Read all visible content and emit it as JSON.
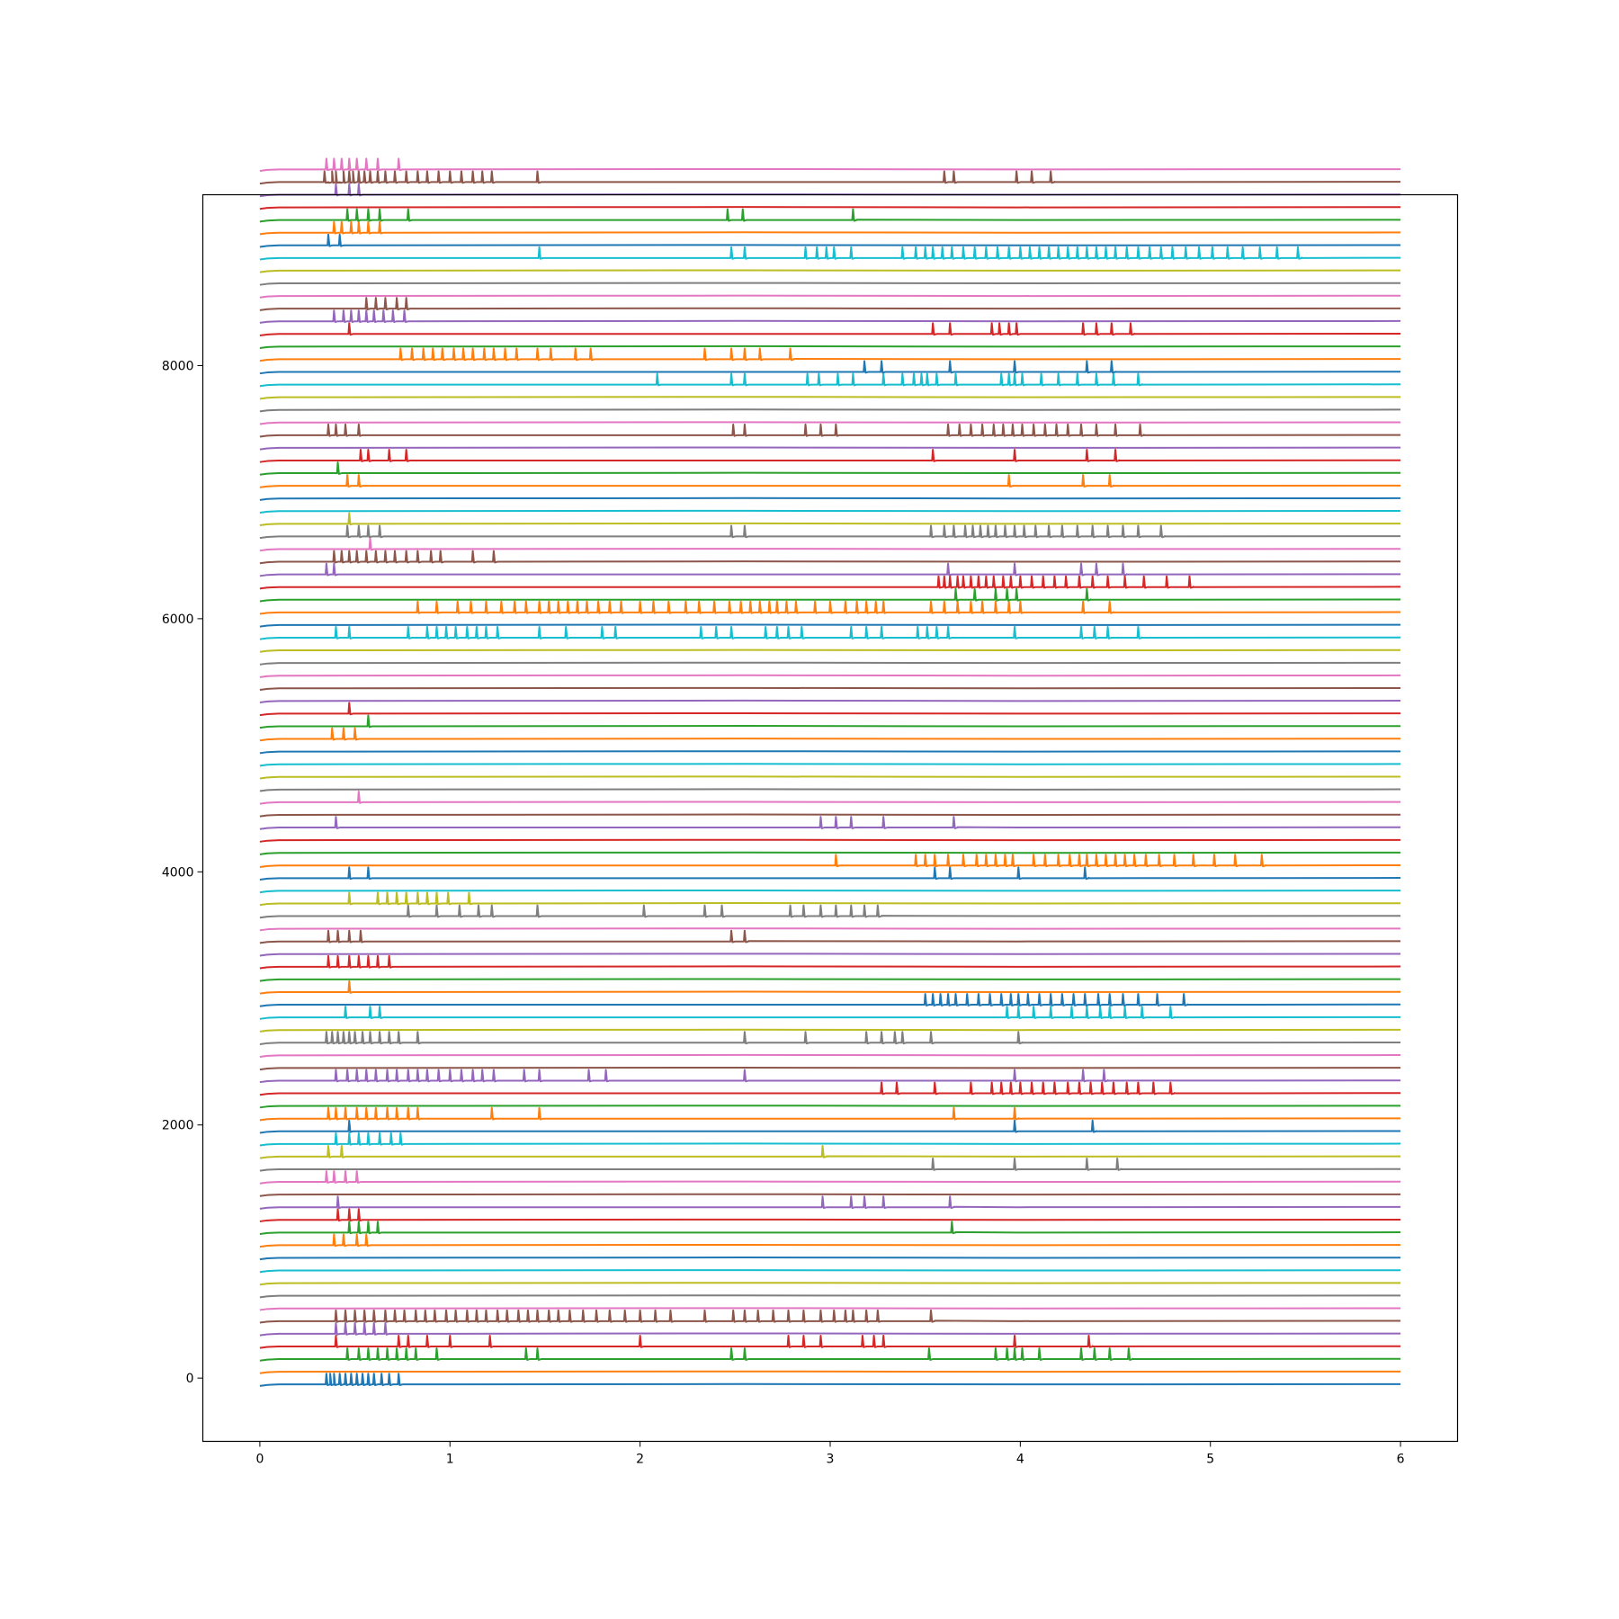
{
  "chart_data": {
    "type": "line",
    "title": "",
    "xlabel": "",
    "ylabel": "",
    "xlim": [
      -0.3,
      6.3
    ],
    "ylim": [
      -500,
      9350
    ],
    "x_ticks": [
      0,
      1,
      2,
      3,
      4,
      5,
      6
    ],
    "x_tick_labels": [
      "0",
      "1",
      "2",
      "3",
      "4",
      "5",
      "6"
    ],
    "y_ticks": [
      0,
      2000,
      4000,
      6000,
      8000
    ],
    "y_tick_labels": [
      "0",
      "2000",
      "4000",
      "6000",
      "8000"
    ],
    "grid": false,
    "legend": "none",
    "trace_spacing": 100,
    "trace_x_range": [
      0,
      6
    ],
    "baseline_offset": -50,
    "spike_height": 85,
    "color_cycle": [
      "#1f77b4",
      "#ff7f0e",
      "#2ca02c",
      "#d62728",
      "#9467bd",
      "#8c564b",
      "#e377c2",
      "#7f7f7f",
      "#bcbd22",
      "#17becf"
    ],
    "series": [
      {
        "values": [
          0.35,
          0.37,
          0.39,
          0.42,
          0.45,
          0.48,
          0.51,
          0.54,
          0.57,
          0.6,
          0.64,
          0.68,
          0.73
        ]
      },
      {
        "values": []
      },
      {
        "values": [
          0.46,
          0.52,
          0.57,
          0.62,
          0.67,
          0.72,
          0.77,
          0.82,
          0.93,
          1.4,
          1.46,
          2.48,
          2.55,
          3.52,
          3.87,
          3.93,
          3.97,
          4.01,
          4.1,
          4.32,
          4.39,
          4.47,
          4.57
        ]
      },
      {
        "values": [
          0.4,
          0.73,
          0.78,
          0.88,
          1.0,
          1.21,
          2.0,
          2.78,
          2.86,
          2.95,
          3.17,
          3.23,
          3.28,
          3.97,
          4.36
        ]
      },
      {
        "values": [
          0.4,
          0.45,
          0.5,
          0.55,
          0.6,
          0.66
        ]
      },
      {
        "values": [
          0.4,
          0.45,
          0.5,
          0.55,
          0.6,
          0.66,
          0.71,
          0.76,
          0.82,
          0.87,
          0.92,
          0.98,
          1.03,
          1.09,
          1.14,
          1.19,
          1.25,
          1.3,
          1.36,
          1.41,
          1.46,
          1.52,
          1.57,
          1.63,
          1.7,
          1.77,
          1.84,
          1.92,
          2.0,
          2.08,
          2.16,
          2.34,
          2.49,
          2.55,
          2.62,
          2.7,
          2.78,
          2.86,
          2.95,
          3.02,
          3.08,
          3.12,
          3.19,
          3.25,
          3.53
        ]
      },
      {
        "values": []
      },
      {
        "values": []
      },
      {
        "values": []
      },
      {
        "values": []
      },
      {
        "values": []
      },
      {
        "values": [
          0.39,
          0.44,
          0.51,
          0.56
        ]
      },
      {
        "values": [
          0.47,
          0.52,
          0.57,
          0.62,
          3.64
        ]
      },
      {
        "values": [
          0.41,
          0.47,
          0.52
        ]
      },
      {
        "values": [
          0.41,
          2.96,
          3.11,
          3.18,
          3.28,
          3.63
        ]
      },
      {
        "values": []
      },
      {
        "values": [
          0.35,
          0.39,
          0.45,
          0.51
        ]
      },
      {
        "values": [
          3.54,
          3.97,
          4.35,
          4.51
        ]
      },
      {
        "values": [
          0.36,
          0.43,
          2.96
        ]
      },
      {
        "values": [
          0.4,
          0.47,
          0.52,
          0.57,
          0.63,
          0.69,
          0.74
        ]
      },
      {
        "values": [
          0.47,
          3.97,
          4.38
        ]
      },
      {
        "values": [
          0.36,
          0.4,
          0.45,
          0.51,
          0.56,
          0.61,
          0.67,
          0.72,
          0.78,
          0.83,
          1.22,
          1.47,
          3.65,
          3.97
        ]
      },
      {
        "values": []
      },
      {
        "values": [
          3.27,
          3.35,
          3.55,
          3.74,
          3.85,
          3.9,
          3.95,
          4.0,
          4.06,
          4.12,
          4.18,
          4.25,
          4.31,
          4.37,
          4.43,
          4.49,
          4.56,
          4.62,
          4.7,
          4.79
        ]
      },
      {
        "values": [
          0.4,
          0.46,
          0.51,
          0.56,
          0.61,
          0.67,
          0.72,
          0.78,
          0.83,
          0.88,
          0.94,
          1.0,
          1.06,
          1.12,
          1.17,
          1.23,
          1.39,
          1.47,
          1.73,
          1.82,
          2.55,
          3.97,
          4.33,
          4.44
        ]
      },
      {
        "values": []
      },
      {
        "values": []
      },
      {
        "values": [
          0.35,
          0.38,
          0.41,
          0.44,
          0.47,
          0.5,
          0.54,
          0.58,
          0.63,
          0.68,
          0.73,
          0.83,
          2.55,
          2.87,
          3.19,
          3.27,
          3.34,
          3.38,
          3.53,
          3.99
        ]
      },
      {
        "values": []
      },
      {
        "values": [
          0.45,
          0.58,
          0.63,
          3.93,
          3.99,
          4.07,
          4.16,
          4.27,
          4.35,
          4.42,
          4.47,
          4.55,
          4.64,
          4.79
        ]
      },
      {
        "values": [
          3.5,
          3.54,
          3.58,
          3.62,
          3.66,
          3.72,
          3.78,
          3.84,
          3.9,
          3.95,
          3.99,
          4.04,
          4.1,
          4.16,
          4.22,
          4.28,
          4.34,
          4.41,
          4.47,
          4.54,
          4.62,
          4.72,
          4.86
        ]
      },
      {
        "values": [
          0.47
        ]
      },
      {
        "values": []
      },
      {
        "values": [
          0.36,
          0.41,
          0.47,
          0.52,
          0.57,
          0.62,
          0.68
        ]
      },
      {
        "values": []
      },
      {
        "values": [
          0.36,
          0.41,
          0.47,
          0.53,
          2.48,
          2.55
        ]
      },
      {
        "values": []
      },
      {
        "values": [
          0.78,
          0.93,
          1.05,
          1.15,
          1.22,
          1.46,
          2.02,
          2.34,
          2.43,
          2.79,
          2.86,
          2.95,
          3.03,
          3.11,
          3.18,
          3.25
        ]
      },
      {
        "values": [
          0.47,
          0.62,
          0.67,
          0.72,
          0.77,
          0.83,
          0.88,
          0.93,
          0.99,
          1.1
        ]
      },
      {
        "values": []
      },
      {
        "values": [
          0.47,
          0.57,
          3.55,
          3.63,
          3.99,
          4.34
        ]
      },
      {
        "values": [
          3.03,
          3.45,
          3.5,
          3.55,
          3.62,
          3.7,
          3.77,
          3.82,
          3.87,
          3.92,
          3.96,
          4.07,
          4.13,
          4.2,
          4.26,
          4.31,
          4.35,
          4.4,
          4.45,
          4.5,
          4.55,
          4.6,
          4.66,
          4.73,
          4.81,
          4.91,
          5.02,
          5.13,
          5.27
        ]
      },
      {
        "values": []
      },
      {
        "values": []
      },
      {
        "values": [
          0.4,
          2.95,
          3.03,
          3.11,
          3.28,
          3.65
        ]
      },
      {
        "values": []
      },
      {
        "values": [
          0.52
        ]
      },
      {
        "values": []
      },
      {
        "values": []
      },
      {
        "values": []
      },
      {
        "values": []
      },
      {
        "values": [
          0.38,
          0.44,
          0.5
        ]
      },
      {
        "values": [
          0.57
        ]
      },
      {
        "values": [
          0.47
        ]
      },
      {
        "values": []
      },
      {
        "values": []
      },
      {
        "values": []
      },
      {
        "values": []
      },
      {
        "values": []
      },
      {
        "values": [
          0.4,
          0.47,
          0.78,
          0.88,
          0.93,
          0.98,
          1.03,
          1.09,
          1.14,
          1.19,
          1.25,
          1.47,
          1.61,
          1.8,
          1.87,
          2.32,
          2.4,
          2.48,
          2.66,
          2.72,
          2.78,
          2.85,
          3.11,
          3.19,
          3.27,
          3.46,
          3.51,
          3.56,
          3.62,
          3.97,
          4.32,
          4.39,
          4.46,
          4.62
        ]
      },
      {
        "values": []
      },
      {
        "values": [
          0.83,
          0.93,
          1.04,
          1.11,
          1.19,
          1.27,
          1.34,
          1.4,
          1.47,
          1.52,
          1.57,
          1.62,
          1.67,
          1.72,
          1.78,
          1.84,
          1.9,
          2.0,
          2.07,
          2.15,
          2.24,
          2.31,
          2.39,
          2.47,
          2.53,
          2.58,
          2.63,
          2.68,
          2.72,
          2.77,
          2.82,
          2.92,
          3.0,
          3.08,
          3.14,
          3.19,
          3.24,
          3.28,
          3.53,
          3.6,
          3.67,
          3.74,
          3.8,
          3.87,
          3.94,
          4.0,
          4.33,
          4.47
        ]
      },
      {
        "values": [
          3.66,
          3.76,
          3.87,
          3.93,
          3.98,
          4.35
        ]
      },
      {
        "values": [
          3.57,
          3.6,
          3.63,
          3.67,
          3.7,
          3.74,
          3.78,
          3.82,
          3.86,
          3.91,
          3.95,
          4.0,
          4.06,
          4.12,
          4.18,
          4.24,
          4.31,
          4.38,
          4.46,
          4.55,
          4.65,
          4.77,
          4.89
        ]
      },
      {
        "values": [
          0.35,
          0.39,
          3.62,
          3.97,
          4.32,
          4.4,
          4.54
        ]
      },
      {
        "values": [
          0.39,
          0.43,
          0.47,
          0.51,
          0.56,
          0.61,
          0.66,
          0.71,
          0.77,
          0.83,
          0.9,
          0.95,
          1.12,
          1.23
        ]
      },
      {
        "values": [
          0.58
        ]
      },
      {
        "values": [
          0.46,
          0.52,
          0.57,
          0.63,
          2.48,
          2.55,
          3.53,
          3.6,
          3.65,
          3.71,
          3.75,
          3.79,
          3.83,
          3.87,
          3.92,
          3.97,
          4.02,
          4.08,
          4.15,
          4.22,
          4.3,
          4.38,
          4.46,
          4.54,
          4.62,
          4.74
        ]
      },
      {
        "values": [
          0.47
        ]
      },
      {
        "values": []
      },
      {
        "values": []
      },
      {
        "values": [
          0.46,
          0.52,
          3.94,
          4.33,
          4.47
        ]
      },
      {
        "values": [
          0.41
        ]
      },
      {
        "values": [
          0.53,
          0.57,
          0.68,
          0.77,
          3.54,
          3.97,
          4.35,
          4.5
        ]
      },
      {
        "values": []
      },
      {
        "values": [
          0.36,
          0.4,
          0.45,
          0.52,
          2.49,
          2.55,
          2.87,
          2.95,
          3.03,
          3.62,
          3.68,
          3.74,
          3.8,
          3.86,
          3.91,
          3.96,
          4.01,
          4.07,
          4.13,
          4.19,
          4.25,
          4.32,
          4.4,
          4.5,
          4.63
        ]
      },
      {
        "values": []
      },
      {
        "values": []
      },
      {
        "values": []
      },
      {
        "values": [
          2.09,
          2.48,
          2.55,
          2.88,
          2.94,
          3.04,
          3.12,
          3.28,
          3.38,
          3.44,
          3.48,
          3.51,
          3.56,
          3.66,
          3.9,
          3.94,
          3.97,
          4.01,
          4.11,
          4.2,
          4.3,
          4.4,
          4.49,
          4.62
        ]
      },
      {
        "values": [
          3.18,
          3.27,
          3.63,
          3.97,
          4.35,
          4.48
        ]
      },
      {
        "values": [
          0.74,
          0.8,
          0.86,
          0.91,
          0.96,
          1.02,
          1.07,
          1.12,
          1.18,
          1.23,
          1.29,
          1.35,
          1.46,
          1.53,
          1.66,
          1.74,
          2.34,
          2.48,
          2.55,
          2.63,
          2.79
        ]
      },
      {
        "values": []
      },
      {
        "values": [
          0.47,
          3.54,
          3.63,
          3.85,
          3.89,
          3.94,
          3.98,
          4.33,
          4.4,
          4.48,
          4.58
        ]
      },
      {
        "values": [
          0.39,
          0.44,
          0.48,
          0.52,
          0.56,
          0.6,
          0.65,
          0.7,
          0.76
        ]
      },
      {
        "values": [
          0.56,
          0.61,
          0.66,
          0.72,
          0.77
        ]
      },
      {
        "values": []
      },
      {
        "values": []
      },
      {
        "values": []
      },
      {
        "values": [
          1.47,
          2.48,
          2.55,
          2.87,
          2.93,
          2.98,
          3.02,
          3.11,
          3.38,
          3.45,
          3.5,
          3.54,
          3.59,
          3.64,
          3.7,
          3.76,
          3.82,
          3.88,
          3.94,
          4.0,
          4.05,
          4.1,
          4.15,
          4.2,
          4.25,
          4.3,
          4.35,
          4.4,
          4.45,
          4.5,
          4.56,
          4.62,
          4.68,
          4.74,
          4.8,
          4.87,
          4.94,
          5.01,
          5.09,
          5.17,
          5.26,
          5.35,
          5.46
        ]
      },
      {
        "values": [
          0.36,
          0.42
        ]
      },
      {
        "values": [
          0.39,
          0.43,
          0.48,
          0.52,
          0.57,
          0.63
        ]
      },
      {
        "values": [
          0.46,
          0.51,
          0.57,
          0.63,
          0.78,
          2.46,
          2.54,
          3.12
        ]
      },
      {
        "values": []
      },
      {
        "values": [
          0.4,
          0.47,
          0.52
        ]
      },
      {
        "values": [
          0.34,
          0.36,
          0.38,
          0.4,
          0.42,
          0.44,
          0.47,
          0.49,
          0.52,
          0.55,
          0.58,
          0.62,
          0.66,
          0.71,
          0.77,
          0.83,
          0.88,
          0.94,
          1.0,
          1.06,
          1.12,
          1.17,
          1.22,
          1.46,
          3.6,
          3.65,
          3.98,
          4.06,
          4.16
        ]
      },
      {
        "values": [
          0.35,
          0.39,
          0.43,
          0.47,
          0.51,
          0.56,
          0.62,
          0.73
        ]
      }
    ]
  }
}
